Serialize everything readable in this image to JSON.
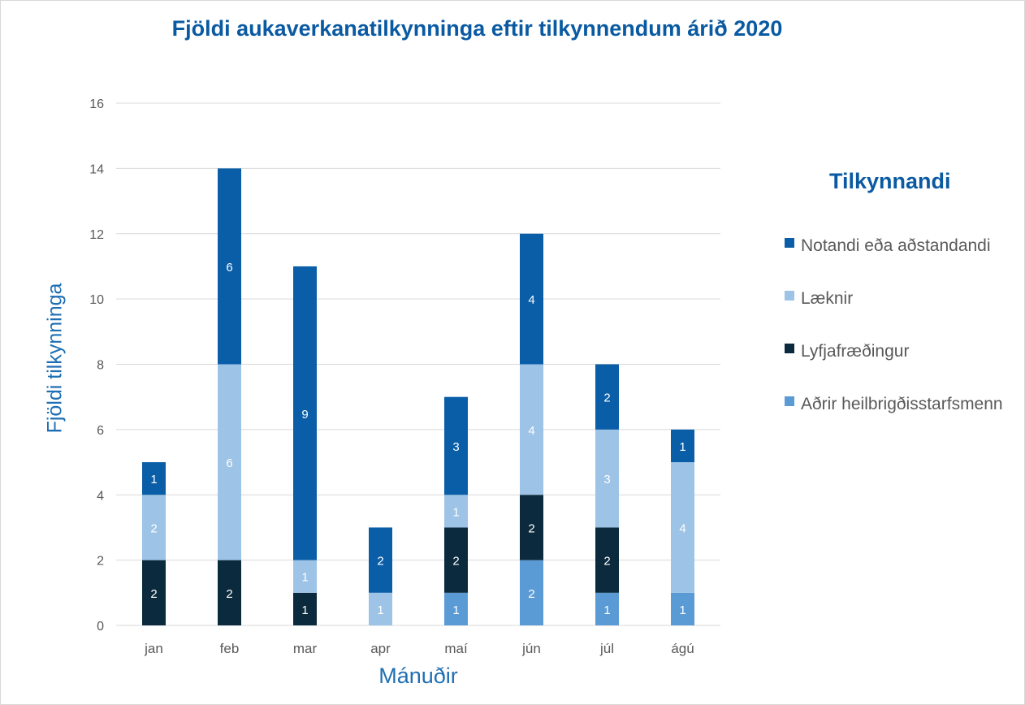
{
  "chart_data": {
    "type": "bar",
    "stacked": true,
    "title": "Fjöldi aukaverkanatilkynninga eftir tilkynnendum árið 2020",
    "xlabel": "Mánuðir",
    "ylabel": "Fjöldi tilkynninga",
    "ylim": [
      0,
      16
    ],
    "yticks": [
      0,
      2,
      4,
      6,
      8,
      10,
      12,
      14,
      16
    ],
    "grid": true,
    "legend_position": "right",
    "legend_title": "Tilkynnandi",
    "categories": [
      "jan",
      "feb",
      "mar",
      "apr",
      "maí",
      "jún",
      "júl",
      "ágú"
    ],
    "series": [
      {
        "name": "Aðrir heilbrigðisstarfsmenn",
        "color": "#5b9bd5",
        "label_color": "#ffffff",
        "values": [
          0,
          0,
          0,
          0,
          1,
          2,
          1,
          1
        ]
      },
      {
        "name": "Lyfjafræðingur",
        "color": "#0b2a3d",
        "label_color": "#ffffff",
        "values": [
          2,
          2,
          1,
          0,
          2,
          2,
          2,
          0
        ]
      },
      {
        "name": "Læknir",
        "color": "#9dc3e6",
        "label_color": "#ffffff",
        "values": [
          2,
          6,
          1,
          1,
          1,
          4,
          3,
          4
        ]
      },
      {
        "name": "Notandi eða aðstandandi",
        "color": "#0a5ea8",
        "label_color": "#ffffff",
        "values": [
          1,
          6,
          9,
          2,
          3,
          4,
          2,
          1
        ]
      }
    ],
    "legend_order": [
      3,
      2,
      1,
      0
    ]
  }
}
